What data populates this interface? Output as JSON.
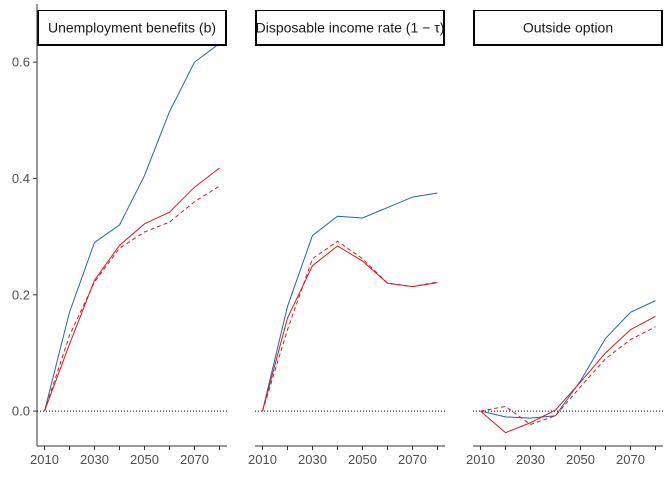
{
  "chart_data": {
    "type": "line",
    "x_ticks": [
      2010,
      2030,
      2050,
      2070
    ],
    "y_ticks": [
      0.0,
      0.2,
      0.4,
      0.6
    ],
    "y_tick_labels": [
      "0.0",
      "0.2",
      "0.4",
      "0.6"
    ],
    "x_tick_labels": [
      "2010",
      "2030",
      "2050",
      "2070"
    ],
    "ylim": [
      -0.06,
      0.7
    ],
    "xlim": [
      2007,
      2083
    ],
    "reference_line": 0,
    "colors": {
      "blue": "#2166ac",
      "red": "#d7191c",
      "reference": "#000000"
    },
    "panels": [
      {
        "title": "Unemployment benefits (b)",
        "x": [
          2010,
          2020,
          2030,
          2040,
          2050,
          2060,
          2070,
          2080
        ],
        "series": [
          {
            "color": "#2166ac",
            "dash": "solid",
            "values": [
              0.0,
              0.17,
              0.29,
              0.32,
              0.405,
              0.515,
              0.6,
              0.632
            ]
          },
          {
            "color": "#d7191c",
            "dash": "solid",
            "values": [
              0.0,
              0.115,
              0.225,
              0.285,
              0.322,
              0.342,
              0.385,
              0.418
            ]
          },
          {
            "color": "#d7191c",
            "dash": "dashed",
            "values": [
              0.0,
              0.13,
              0.222,
              0.28,
              0.308,
              0.325,
              0.36,
              0.387
            ]
          }
        ]
      },
      {
        "title": "Disposable income rate (1 − τ)",
        "x": [
          2010,
          2020,
          2030,
          2040,
          2050,
          2060,
          2070,
          2080
        ],
        "series": [
          {
            "color": "#2166ac",
            "dash": "solid",
            "values": [
              0.0,
              0.18,
              0.302,
              0.335,
              0.332,
              0.35,
              0.368,
              0.375
            ]
          },
          {
            "color": "#d7191c",
            "dash": "solid",
            "values": [
              0.0,
              0.16,
              0.25,
              0.284,
              0.258,
              0.22,
              0.214,
              0.221
            ]
          },
          {
            "color": "#d7191c",
            "dash": "dashed",
            "values": [
              0.0,
              0.14,
              0.262,
              0.292,
              0.262,
              0.22,
              0.214,
              0.222
            ]
          }
        ]
      },
      {
        "title": "Outside option",
        "x": [
          2010,
          2020,
          2030,
          2040,
          2050,
          2060,
          2070,
          2080
        ],
        "series": [
          {
            "color": "#2166ac",
            "dash": "solid",
            "values": [
              0.0,
              -0.01,
              -0.012,
              -0.008,
              0.052,
              0.125,
              0.17,
              0.19
            ]
          },
          {
            "color": "#d7191c",
            "dash": "solid",
            "values": [
              0.0,
              -0.037,
              -0.02,
              0.002,
              0.05,
              0.1,
              0.14,
              0.163
            ]
          },
          {
            "color": "#d7191c",
            "dash": "dashed",
            "values": [
              0.0,
              0.008,
              -0.023,
              -0.008,
              0.042,
              0.09,
              0.123,
              0.145
            ]
          }
        ]
      }
    ]
  }
}
